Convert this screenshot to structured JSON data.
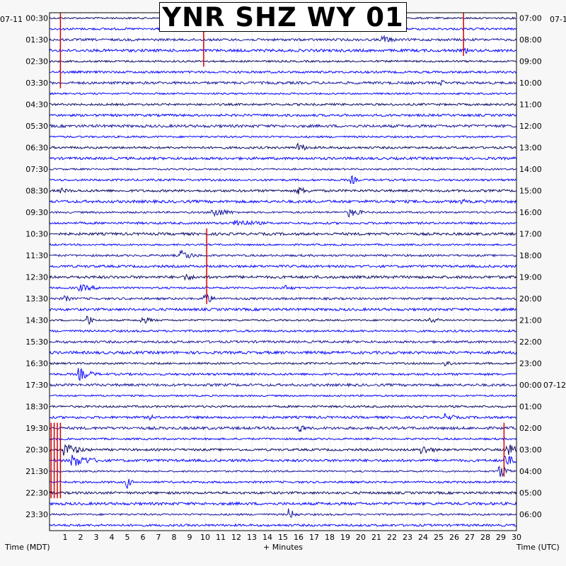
{
  "title": "YNR SHZ WY 01",
  "left_date": "07-11",
  "right_date_top": "07-1",
  "right_date_mid": "07-12",
  "bottom": {
    "left_label": "Time (MDT)",
    "center_label": "+ Minutes",
    "right_label": "Time (UTC)"
  },
  "colors": {
    "trace_dark": "#0d0d66",
    "trace_mid": "#1a1aa0",
    "trace_bright": "#0a0aff",
    "clip_marks": "#d40000",
    "grid_dots": "#9a9a9a",
    "background": "#ffffff"
  },
  "chart_data": {
    "type": "helicorder",
    "title": "YNR SHZ WY 01",
    "xlabel": "+ Minutes",
    "xlim": [
      0,
      30
    ],
    "x_ticks": [
      "1",
      "2",
      "3",
      "4",
      "5",
      "6",
      "7",
      "8",
      "9",
      "10",
      "11",
      "12",
      "13",
      "14",
      "15",
      "16",
      "17",
      "18",
      "19",
      "20",
      "21",
      "22",
      "23",
      "24",
      "25",
      "26",
      "27",
      "28",
      "29",
      "30"
    ],
    "rows_per_hour": 2,
    "row_count": 48,
    "trace_color_cycle": [
      "dark",
      "bright",
      "mid",
      "bright"
    ],
    "left_time_labels": [
      "00:30",
      "01:30",
      "02:30",
      "03:30",
      "04:30",
      "05:30",
      "06:30",
      "07:30",
      "08:30",
      "09:30",
      "10:30",
      "11:30",
      "12:30",
      "13:30",
      "14:30",
      "15:30",
      "16:30",
      "17:30",
      "18:30",
      "19:30",
      "20:30",
      "21:30",
      "22:30",
      "23:30"
    ],
    "right_time_labels": [
      "07:00",
      "08:00",
      "09:00",
      "10:00",
      "11:00",
      "12:00",
      "13:00",
      "14:00",
      "15:00",
      "16:00",
      "17:00",
      "18:00",
      "19:00",
      "20:00",
      "21:00",
      "22:00",
      "23:00",
      "00:00",
      "01:00",
      "02:00",
      "03:00",
      "04:00",
      "05:00",
      "06:00"
    ],
    "events": [
      {
        "row": 2,
        "minute": 21.5,
        "amp": 6,
        "dur": 1.5
      },
      {
        "row": 3,
        "minute": 26.8,
        "amp": 4,
        "dur": 0.4
      },
      {
        "row": 6,
        "minute": 25.3,
        "amp": 4,
        "dur": 0.8
      },
      {
        "row": 12,
        "minute": 16.0,
        "amp": 7,
        "dur": 1.2
      },
      {
        "row": 15,
        "minute": 19.5,
        "amp": 6,
        "dur": 0.7
      },
      {
        "row": 16,
        "minute": 0.8,
        "amp": 4,
        "dur": 1.5
      },
      {
        "row": 16,
        "minute": 16.0,
        "amp": 6,
        "dur": 1.5
      },
      {
        "row": 17,
        "minute": 26.6,
        "amp": 4,
        "dur": 0.4
      },
      {
        "row": 18,
        "minute": 10.5,
        "amp": 8,
        "dur": 2.0
      },
      {
        "row": 18,
        "minute": 19.3,
        "amp": 7,
        "dur": 1.5
      },
      {
        "row": 19,
        "minute": 12.0,
        "amp": 6,
        "dur": 3.0
      },
      {
        "row": 22,
        "minute": 8.5,
        "amp": 8,
        "dur": 1.5
      },
      {
        "row": 24,
        "minute": 8.7,
        "amp": 5,
        "dur": 2.0
      },
      {
        "row": 25,
        "minute": 2.0,
        "amp": 5,
        "dur": 2.5
      },
      {
        "row": 25,
        "minute": 15.0,
        "amp": 5,
        "dur": 1.5
      },
      {
        "row": 26,
        "minute": 1.0,
        "amp": 5,
        "dur": 1.0
      },
      {
        "row": 26,
        "minute": 10.0,
        "amp": 9,
        "dur": 1.0
      },
      {
        "row": 28,
        "minute": 6.0,
        "amp": 5,
        "dur": 1.5
      },
      {
        "row": 28,
        "minute": 2.5,
        "amp": 9,
        "dur": 0.5
      },
      {
        "row": 28,
        "minute": 24.5,
        "amp": 4,
        "dur": 1.5
      },
      {
        "row": 32,
        "minute": 25.5,
        "amp": 5,
        "dur": 1.0
      },
      {
        "row": 33,
        "minute": 2.0,
        "amp": 9,
        "dur": 1.5
      },
      {
        "row": 37,
        "minute": 25.5,
        "amp": 6,
        "dur": 1.2
      },
      {
        "row": 37,
        "minute": 6.5,
        "amp": 5,
        "dur": 0.5
      },
      {
        "row": 38,
        "minute": 16.2,
        "amp": 7,
        "dur": 0.5
      },
      {
        "row": 40,
        "minute": 1.0,
        "amp": 10,
        "dur": 2.0
      },
      {
        "row": 40,
        "minute": 24.0,
        "amp": 7,
        "dur": 1.5
      },
      {
        "row": 40,
        "minute": 29.5,
        "amp": 10,
        "dur": 1.0
      },
      {
        "row": 41,
        "minute": 1.5,
        "amp": 10,
        "dur": 2.5
      },
      {
        "row": 41,
        "minute": 29.3,
        "amp": 10,
        "dur": 1.2
      },
      {
        "row": 42,
        "minute": 29.0,
        "amp": 9,
        "dur": 1.0
      },
      {
        "row": 43,
        "minute": 5.0,
        "amp": 9,
        "dur": 0.5
      },
      {
        "row": 46,
        "minute": 15.4,
        "amp": 9,
        "dur": 0.8
      }
    ],
    "clips": [
      {
        "minute": 0.7,
        "row_start": 0,
        "row_end": 6
      },
      {
        "minute": 9.9,
        "row_start": 0,
        "row_end": 4
      },
      {
        "minute": 26.6,
        "row_start": 0,
        "row_end": 3
      },
      {
        "minute": 10.1,
        "row_start": 20,
        "row_end": 26
      },
      {
        "minute": 0.1,
        "row_start": 38,
        "row_end": 44
      },
      {
        "minute": 0.3,
        "row_start": 38,
        "row_end": 44
      },
      {
        "minute": 0.5,
        "row_start": 38,
        "row_end": 44
      },
      {
        "minute": 0.7,
        "row_start": 38,
        "row_end": 44
      },
      {
        "minute": 29.2,
        "row_start": 38,
        "row_end": 42
      }
    ]
  }
}
